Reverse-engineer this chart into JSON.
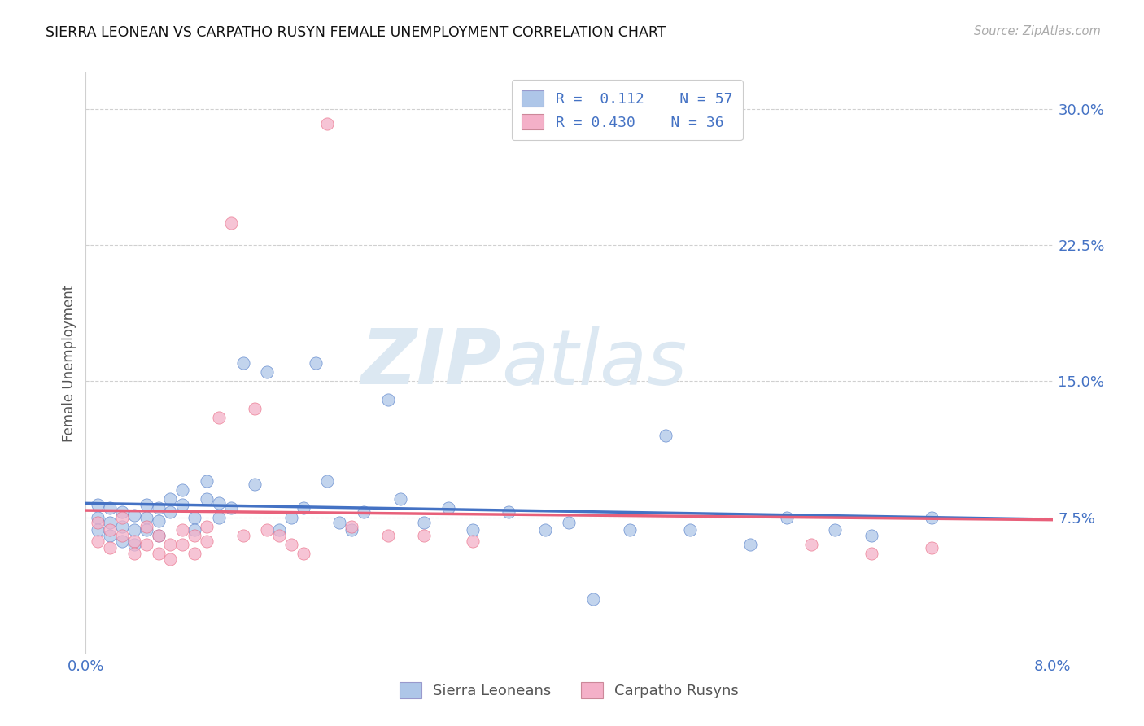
{
  "title": "SIERRA LEONEAN VS CARPATHO RUSYN FEMALE UNEMPLOYMENT CORRELATION CHART",
  "source": "Source: ZipAtlas.com",
  "ylabel": "Female Unemployment",
  "ytick_vals": [
    0.075,
    0.15,
    0.225,
    0.3
  ],
  "ytick_labels": [
    "7.5%",
    "15.0%",
    "22.5%",
    "30.0%"
  ],
  "xtick_vals": [
    0.0,
    0.08
  ],
  "xtick_labels": [
    "0.0%",
    "8.0%"
  ],
  "xlim": [
    0.0,
    0.08
  ],
  "ylim": [
    0.0,
    0.32
  ],
  "legend_blue_R": "0.112",
  "legend_blue_N": "57",
  "legend_pink_R": "0.430",
  "legend_pink_N": "36",
  "blue_fill": "#aec6e8",
  "pink_fill": "#f4b0c8",
  "line_blue": "#4472c4",
  "line_pink": "#e8607a",
  "text_blue": "#4472c4",
  "grid_color": "#d0d0d0",
  "bg_color": "#ffffff",
  "watermark_color": "#dce8f2",
  "sierra_x": [
    0.001,
    0.001,
    0.001,
    0.002,
    0.002,
    0.002,
    0.003,
    0.003,
    0.003,
    0.004,
    0.004,
    0.004,
    0.005,
    0.005,
    0.005,
    0.006,
    0.006,
    0.006,
    0.007,
    0.007,
    0.008,
    0.008,
    0.009,
    0.009,
    0.01,
    0.01,
    0.011,
    0.011,
    0.012,
    0.013,
    0.014,
    0.015,
    0.016,
    0.017,
    0.018,
    0.019,
    0.02,
    0.021,
    0.022,
    0.023,
    0.025,
    0.026,
    0.028,
    0.03,
    0.032,
    0.035,
    0.038,
    0.04,
    0.042,
    0.045,
    0.048,
    0.05,
    0.055,
    0.058,
    0.062,
    0.065,
    0.07
  ],
  "sierra_y": [
    0.075,
    0.082,
    0.068,
    0.08,
    0.072,
    0.065,
    0.078,
    0.07,
    0.062,
    0.076,
    0.068,
    0.06,
    0.082,
    0.075,
    0.068,
    0.08,
    0.073,
    0.065,
    0.085,
    0.078,
    0.09,
    0.082,
    0.075,
    0.068,
    0.095,
    0.085,
    0.083,
    0.075,
    0.08,
    0.16,
    0.093,
    0.155,
    0.068,
    0.075,
    0.08,
    0.16,
    0.095,
    0.072,
    0.068,
    0.078,
    0.14,
    0.085,
    0.072,
    0.08,
    0.068,
    0.078,
    0.068,
    0.072,
    0.03,
    0.068,
    0.12,
    0.068,
    0.06,
    0.075,
    0.068,
    0.065,
    0.075
  ],
  "rusyn_x": [
    0.001,
    0.001,
    0.002,
    0.002,
    0.003,
    0.003,
    0.004,
    0.004,
    0.005,
    0.005,
    0.006,
    0.006,
    0.007,
    0.007,
    0.008,
    0.008,
    0.009,
    0.009,
    0.01,
    0.01,
    0.011,
    0.012,
    0.013,
    0.014,
    0.015,
    0.016,
    0.017,
    0.018,
    0.02,
    0.022,
    0.025,
    0.028,
    0.032,
    0.06,
    0.065,
    0.07
  ],
  "rusyn_y": [
    0.072,
    0.062,
    0.068,
    0.058,
    0.075,
    0.065,
    0.062,
    0.055,
    0.07,
    0.06,
    0.065,
    0.055,
    0.06,
    0.052,
    0.068,
    0.06,
    0.065,
    0.055,
    0.07,
    0.062,
    0.13,
    0.237,
    0.065,
    0.135,
    0.068,
    0.065,
    0.06,
    0.055,
    0.292,
    0.07,
    0.065,
    0.065,
    0.062,
    0.06,
    0.055,
    0.058
  ]
}
